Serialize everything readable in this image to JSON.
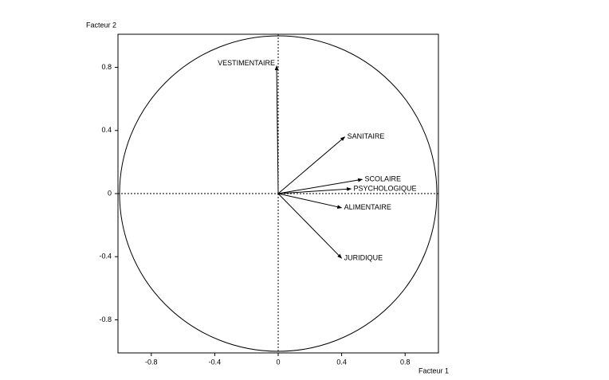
{
  "chart_data": {
    "type": "vector",
    "x_label": "Facteur 1",
    "y_label": "Facteur 2",
    "xlim": [
      -1.01,
      1.01
    ],
    "ylim": [
      -1.01,
      1.01
    ],
    "xticks": [
      -0.8,
      -0.4,
      0,
      0.4,
      0.8
    ],
    "yticks": [
      -0.8,
      -0.4,
      0,
      0.4,
      0.8
    ],
    "unit_circle": true,
    "zero_lines": true,
    "color": "#000000",
    "points": [
      {
        "name": "VESTIMENTAIRE",
        "x": -0.01,
        "y": 0.81
      },
      {
        "name": "SANITAIRE",
        "x": 0.42,
        "y": 0.36
      },
      {
        "name": "SCOLAIRE",
        "x": 0.53,
        "y": 0.09
      },
      {
        "name": "PSYCHOLOGIQUE",
        "x": 0.46,
        "y": 0.03
      },
      {
        "name": "ALIMENTAIRE",
        "x": 0.4,
        "y": -0.09
      },
      {
        "name": "JURIDIQUE",
        "x": 0.4,
        "y": -0.41
      }
    ]
  }
}
